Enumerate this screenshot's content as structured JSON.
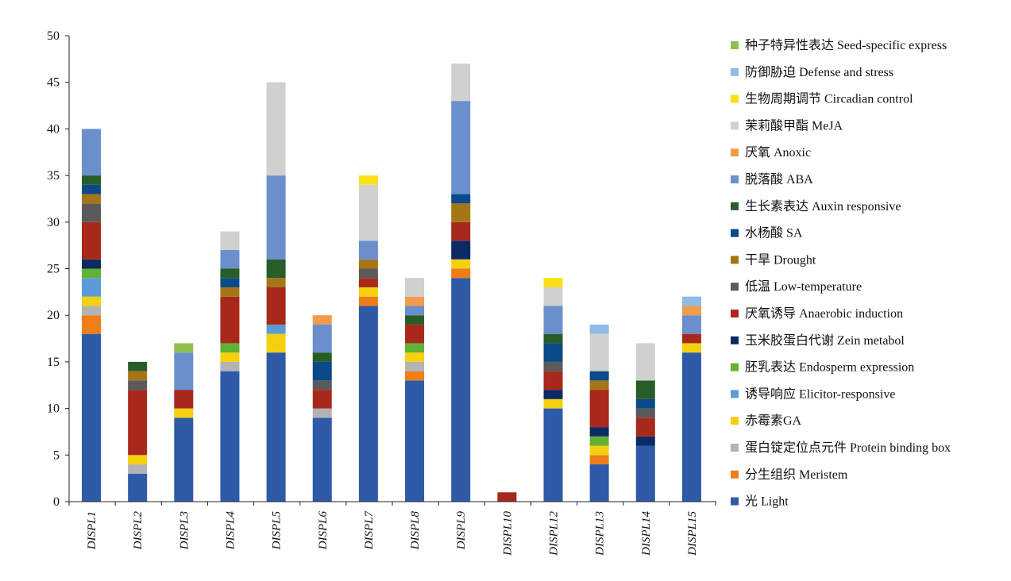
{
  "chart_data": {
    "type": "bar",
    "stacked": true,
    "title": "",
    "xlabel": "",
    "ylabel": "",
    "ylim": [
      0,
      50
    ],
    "yticks": [
      0,
      5,
      10,
      15,
      20,
      25,
      30,
      35,
      40,
      45,
      50
    ],
    "grid": false,
    "legend_position": "right",
    "categories": [
      "DISPL1",
      "DISPL2",
      "DISPL3",
      "DISPL4",
      "DISPL5",
      "DISPL6",
      "DISPL7",
      "DISPL8",
      "DISPL9",
      "DISPL10",
      "DISPL12",
      "DISPL13",
      "DISPL14",
      "DISPL15"
    ],
    "series": [
      {
        "name": "光 Light",
        "color": "#2f5aa8",
        "values": [
          18,
          3,
          9,
          14,
          16,
          9,
          21,
          13,
          24,
          0,
          10,
          4,
          6,
          16
        ]
      },
      {
        "name": "分生组织 Meristem",
        "color": "#ee7d1a",
        "values": [
          2,
          0,
          0,
          0,
          0,
          0,
          1,
          1,
          1,
          0,
          0,
          1,
          0,
          0
        ]
      },
      {
        "name": "蛋白锭定位点元件 Protein binding box",
        "color": "#b3b3b3",
        "values": [
          1,
          1,
          0,
          1,
          0,
          1,
          0,
          1,
          0,
          0,
          0,
          0,
          0,
          0
        ]
      },
      {
        "name": "赤霉素GA",
        "color": "#f5d00f",
        "values": [
          1,
          1,
          1,
          1,
          2,
          0,
          1,
          1,
          1,
          0,
          1,
          1,
          0,
          1
        ]
      },
      {
        "name": "诱导响应 Elicitor-responsive",
        "color": "#5b9bd5",
        "values": [
          2,
          0,
          0,
          0,
          1,
          0,
          0,
          0,
          0,
          0,
          0,
          0,
          0,
          0
        ]
      },
      {
        "name": "胚乳表达 Endosperm expression",
        "color": "#62b034",
        "values": [
          1,
          0,
          0,
          1,
          0,
          0,
          0,
          1,
          0,
          0,
          0,
          1,
          0,
          0
        ]
      },
      {
        "name": "玉米胶蛋白代谢 Zein metabol",
        "color": "#0e2a64",
        "values": [
          1,
          0,
          0,
          0,
          0,
          0,
          0,
          0,
          2,
          0,
          1,
          1,
          1,
          0
        ]
      },
      {
        "name": "厌氧诱导 Anaerobic induction",
        "color": "#a8291c",
        "values": [
          4,
          7,
          2,
          5,
          4,
          2,
          1,
          2,
          2,
          1,
          2,
          4,
          2,
          1
        ]
      },
      {
        "name": "低温 Low-temperature",
        "color": "#5a5a5a",
        "values": [
          2,
          1,
          0,
          0,
          0,
          1,
          1,
          0,
          0,
          0,
          1,
          0,
          1,
          0
        ]
      },
      {
        "name": "干旱 Drought",
        "color": "#a57517",
        "values": [
          1,
          1,
          0,
          1,
          1,
          0,
          1,
          0,
          2,
          0,
          0,
          1,
          0,
          0
        ]
      },
      {
        "name": "水杨酸 SA",
        "color": "#0b4a8a",
        "values": [
          1,
          0,
          0,
          1,
          0,
          2,
          0,
          0,
          1,
          0,
          2,
          1,
          1,
          0
        ]
      },
      {
        "name": "生长素表达 Auxin responsive",
        "color": "#285d27",
        "values": [
          1,
          1,
          0,
          1,
          2,
          1,
          0,
          1,
          0,
          0,
          1,
          0,
          2,
          0
        ]
      },
      {
        "name": "脱落酸 ABA",
        "color": "#6a8fcc",
        "values": [
          5,
          0,
          4,
          2,
          9,
          3,
          2,
          1,
          10,
          0,
          3,
          0,
          0,
          2
        ]
      },
      {
        "name": "厌氧 Anoxic",
        "color": "#f19c4c",
        "values": [
          0,
          0,
          0,
          0,
          0,
          1,
          0,
          1,
          0,
          0,
          0,
          0,
          0,
          1
        ]
      },
      {
        "name": "茉莉酸甲酯 MeJA",
        "color": "#d0d0d0",
        "values": [
          0,
          0,
          0,
          2,
          10,
          0,
          6,
          2,
          4,
          0,
          2,
          4,
          4,
          0
        ]
      },
      {
        "name": "生物周期调节 Circadian control",
        "color": "#fbe019",
        "values": [
          0,
          0,
          0,
          0,
          0,
          0,
          1,
          0,
          0,
          0,
          1,
          0,
          0,
          0
        ]
      },
      {
        "name": "防御胁迫 Defense and stress",
        "color": "#8fbbe6",
        "values": [
          0,
          0,
          0,
          0,
          0,
          0,
          0,
          0,
          0,
          0,
          0,
          1,
          0,
          1
        ]
      },
      {
        "name": "种子特异性表达 Seed-specific express",
        "color": "#8cc152",
        "values": [
          0,
          0,
          1,
          0,
          0,
          0,
          0,
          0,
          0,
          0,
          0,
          0,
          0,
          0
        ]
      }
    ]
  }
}
